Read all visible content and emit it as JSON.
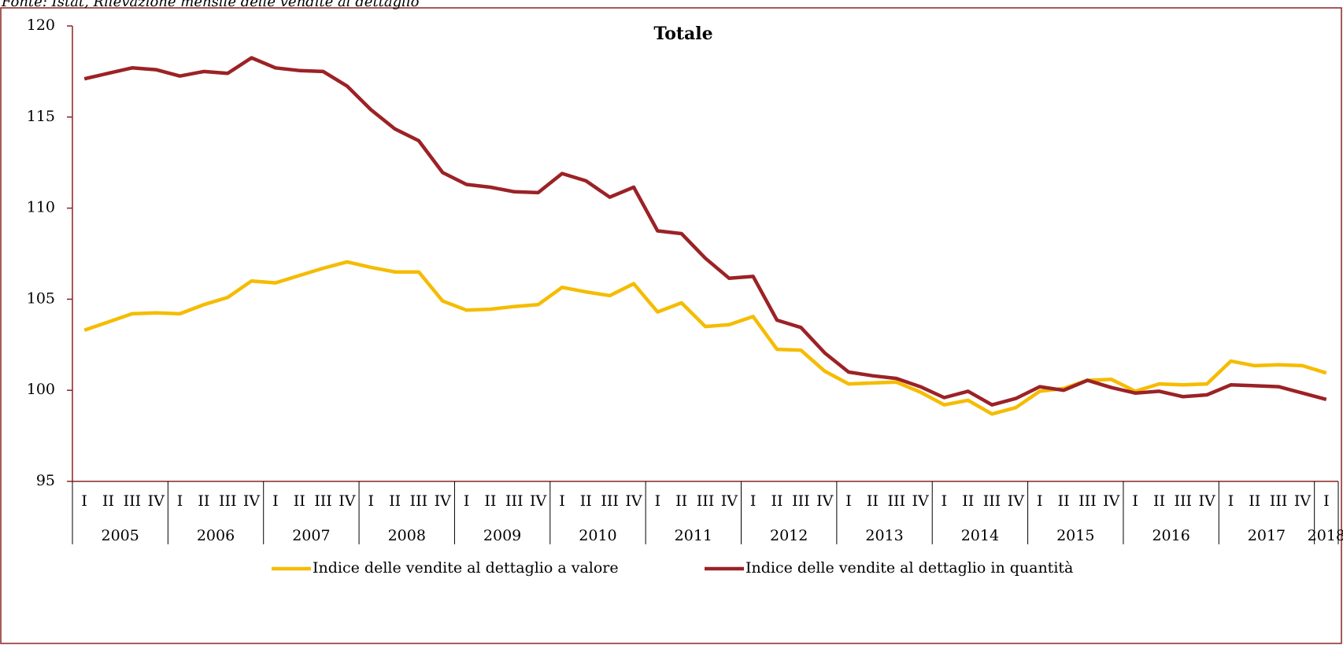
{
  "chart_data": {
    "type": "line",
    "source": "Fonte: Istat, Rilevazione mensile delle vendite al dettaglio",
    "title": "Totale",
    "categories": [
      "I",
      "II",
      "III",
      "IV",
      "I",
      "II",
      "III",
      "IV",
      "I",
      "II",
      "III",
      "IV",
      "I",
      "II",
      "III",
      "IV",
      "I",
      "II",
      "III",
      "IV",
      "I",
      "II",
      "III",
      "IV",
      "I",
      "II",
      "III",
      "IV",
      "I",
      "II",
      "III",
      "IV",
      "I",
      "II",
      "III",
      "IV",
      "I",
      "II",
      "III",
      "IV",
      "I",
      "II",
      "III",
      "IV",
      "I",
      "II",
      "III",
      "IV",
      "I",
      "II",
      "III",
      "IV",
      "I"
    ],
    "year_groups": [
      "2005",
      "2006",
      "2007",
      "2008",
      "2009",
      "2010",
      "2011",
      "2012",
      "2013",
      "2014",
      "2015",
      "2016",
      "2017",
      "2018"
    ],
    "series": [
      {
        "name": "Indice delle vendite al dettaglio a valore",
        "color": "#f5bc00",
        "values": [
          103.3,
          103.75,
          104.2,
          104.25,
          104.2,
          104.7,
          105.1,
          106.0,
          105.9,
          106.3,
          106.7,
          107.05,
          106.75,
          106.5,
          106.5,
          104.9,
          104.4,
          104.45,
          104.6,
          104.7,
          105.65,
          105.4,
          105.2,
          105.85,
          104.3,
          104.8,
          103.5,
          103.6,
          104.05,
          102.25,
          102.2,
          101.05,
          100.35,
          100.4,
          100.45,
          99.9,
          99.2,
          99.45,
          98.7,
          99.05,
          99.95,
          100.1,
          100.55,
          100.6,
          99.95,
          100.35,
          100.3,
          100.35,
          101.6,
          101.35,
          101.4,
          101.35,
          100.95
        ]
      },
      {
        "name": "Indice delle vendite al dettaglio in quantità",
        "color": "#9b2226",
        "values": [
          117.1,
          117.4,
          117.7,
          117.6,
          117.25,
          117.5,
          117.4,
          118.25,
          117.7,
          117.55,
          117.5,
          116.7,
          115.4,
          114.35,
          113.7,
          111.95,
          111.3,
          111.15,
          110.9,
          110.85,
          111.9,
          111.5,
          110.6,
          111.15,
          108.75,
          108.6,
          107.25,
          106.15,
          106.25,
          103.85,
          103.45,
          102.05,
          101.0,
          100.8,
          100.65,
          100.2,
          99.6,
          99.95,
          99.2,
          99.55,
          100.2,
          100.0,
          100.55,
          100.15,
          99.85,
          99.95,
          99.65,
          99.75,
          100.3,
          100.25,
          100.2,
          99.85,
          99.5
        ]
      }
    ],
    "ylim": [
      95,
      120
    ],
    "yticks": [
      95,
      100,
      105,
      110,
      115,
      120
    ],
    "grid": false
  }
}
